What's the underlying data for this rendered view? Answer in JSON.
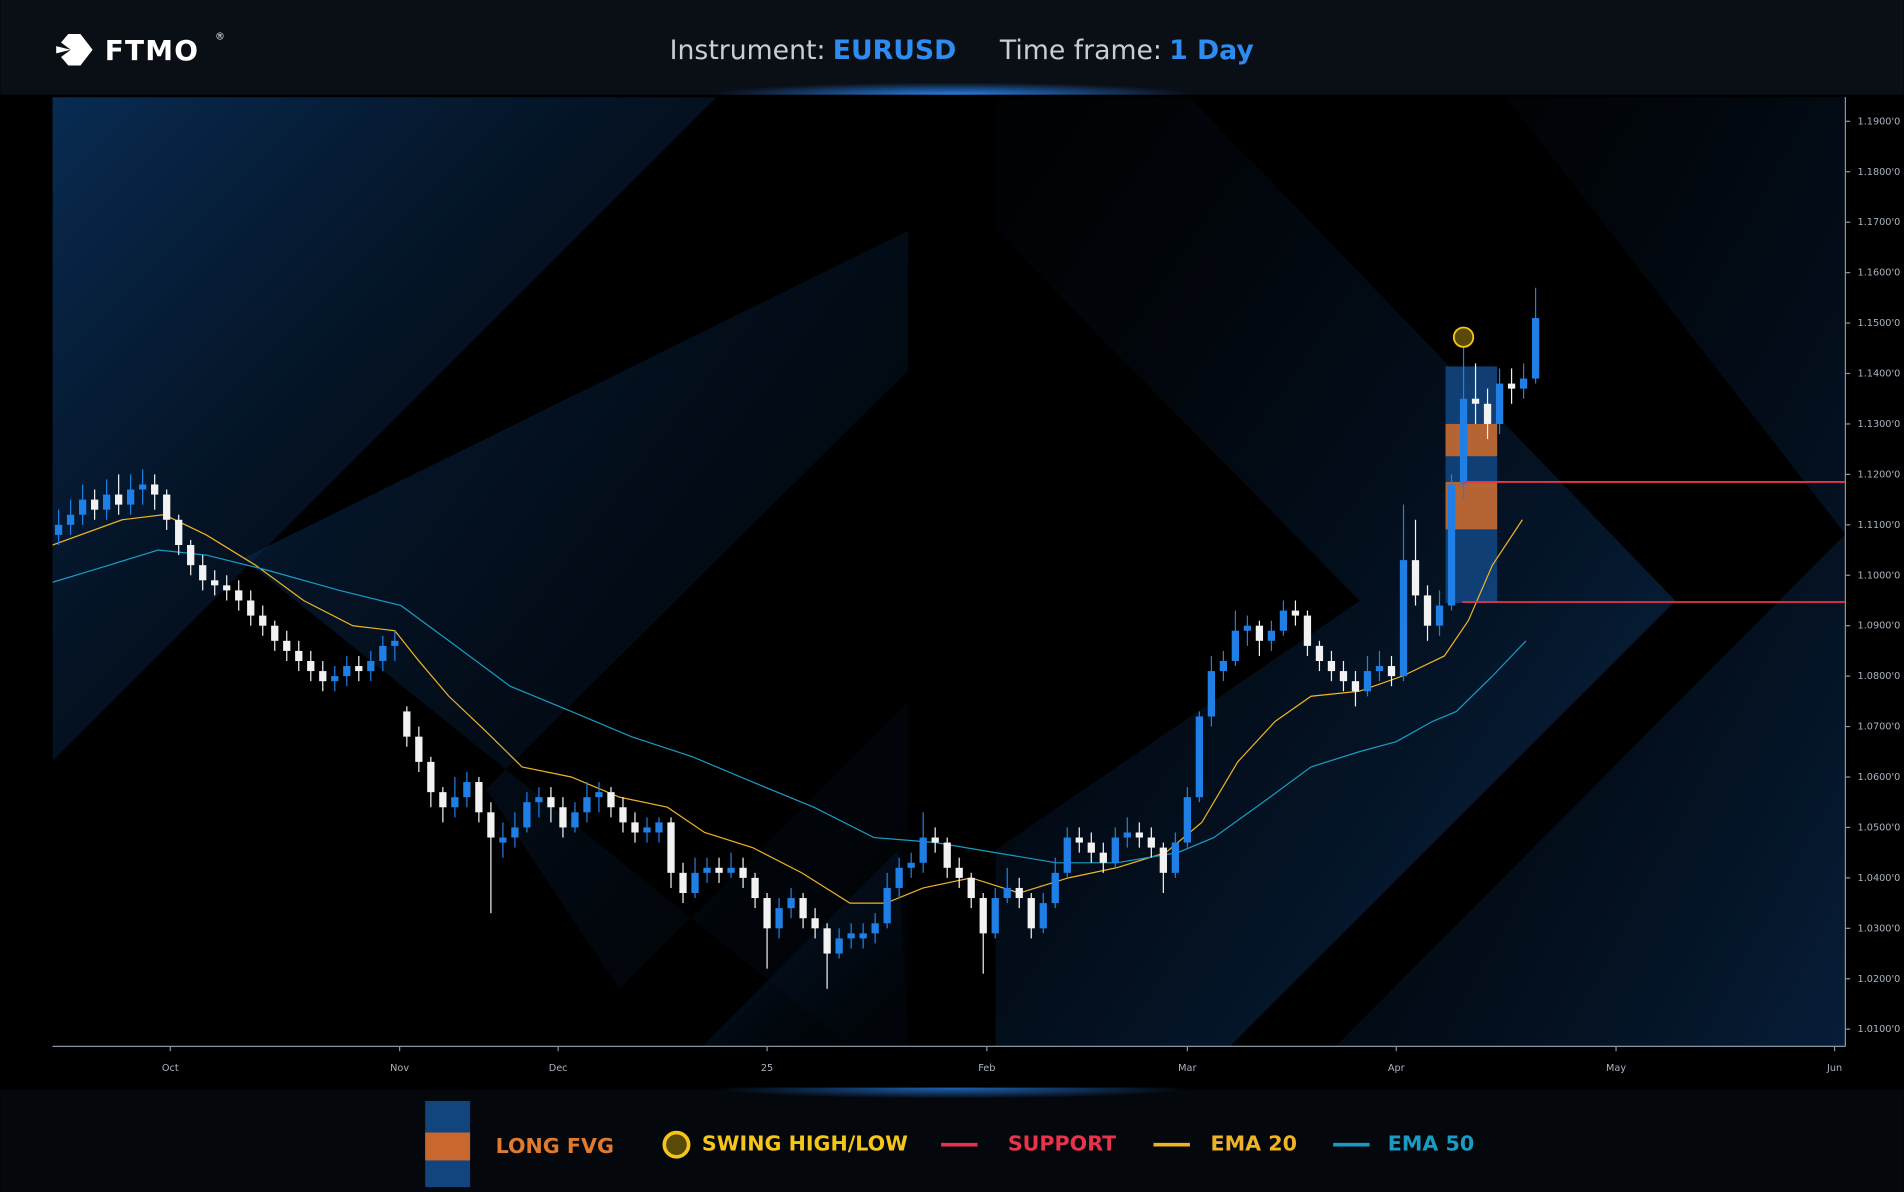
{
  "header": {
    "logo": "FTMO",
    "logo_mark": "®",
    "instrument_label": "Instrument:",
    "instrument": "EURUSD",
    "timeframe_label": "Time frame:",
    "timeframe": "1 Day"
  },
  "chart_data": {
    "type": "candlestick",
    "candles": {
      "open": [
        1.108,
        1.11,
        1.112,
        1.115,
        1.113,
        1.116,
        1.114,
        1.117,
        1.118,
        1.116,
        1.111,
        1.106,
        1.102,
        1.099,
        1.098,
        1.097,
        1.095,
        1.092,
        1.09,
        1.087,
        1.085,
        1.083,
        1.081,
        1.079,
        1.08,
        1.082,
        1.081,
        1.083,
        1.086,
        1.073,
        1.068,
        1.063,
        1.057,
        1.054,
        1.056,
        1.059,
        1.053,
        1.047,
        1.048,
        1.05,
        1.055,
        1.056,
        1.054,
        1.05,
        1.053,
        1.056,
        1.057,
        1.054,
        1.051,
        1.049,
        1.049,
        1.051,
        1.041,
        1.037,
        1.041,
        1.042,
        1.041,
        1.042,
        1.04,
        1.036,
        1.03,
        1.034,
        1.036,
        1.032,
        1.03,
        1.025,
        1.028,
        1.028,
        1.029,
        1.031,
        1.038,
        1.042,
        1.043,
        1.048,
        1.047,
        1.042,
        1.04,
        1.036,
        1.029,
        1.036,
        1.038,
        1.036,
        1.03,
        1.035,
        1.041,
        1.048,
        1.047,
        1.045,
        1.043,
        1.048,
        1.049,
        1.048,
        1.046,
        1.041,
        1.047,
        1.056,
        1.072,
        1.081,
        1.083,
        1.089,
        1.09,
        1.087,
        1.089,
        1.093,
        1.092,
        1.086,
        1.083,
        1.081,
        1.079,
        1.077,
        1.081,
        1.082,
        1.08,
        1.103,
        1.096,
        1.09,
        1.094,
        1.118,
        1.135,
        1.134,
        1.13,
        1.138,
        1.137,
        1.139
      ],
      "high": [
        1.113,
        1.115,
        1.118,
        1.117,
        1.119,
        1.12,
        1.12,
        1.121,
        1.12,
        1.117,
        1.112,
        1.107,
        1.104,
        1.101,
        1.1,
        1.099,
        1.097,
        1.094,
        1.091,
        1.089,
        1.087,
        1.085,
        1.083,
        1.082,
        1.084,
        1.084,
        1.085,
        1.088,
        1.089,
        1.074,
        1.07,
        1.064,
        1.058,
        1.06,
        1.061,
        1.06,
        1.055,
        1.051,
        1.053,
        1.057,
        1.058,
        1.058,
        1.056,
        1.055,
        1.059,
        1.059,
        1.058,
        1.056,
        1.053,
        1.052,
        1.052,
        1.052,
        1.043,
        1.044,
        1.044,
        1.044,
        1.045,
        1.044,
        1.041,
        1.037,
        1.036,
        1.038,
        1.037,
        1.034,
        1.031,
        1.03,
        1.031,
        1.031,
        1.033,
        1.041,
        1.044,
        1.045,
        1.053,
        1.05,
        1.048,
        1.044,
        1.041,
        1.037,
        1.038,
        1.042,
        1.04,
        1.037,
        1.037,
        1.044,
        1.05,
        1.05,
        1.049,
        1.047,
        1.05,
        1.052,
        1.051,
        1.05,
        1.047,
        1.049,
        1.058,
        1.073,
        1.084,
        1.085,
        1.093,
        1.092,
        1.091,
        1.091,
        1.095,
        1.095,
        1.093,
        1.087,
        1.085,
        1.083,
        1.081,
        1.084,
        1.085,
        1.084,
        1.114,
        1.111,
        1.098,
        1.097,
        1.12,
        1.147,
        1.142,
        1.137,
        1.141,
        1.141,
        1.142,
        1.157
      ],
      "low": [
        1.106,
        1.108,
        1.11,
        1.111,
        1.111,
        1.112,
        1.112,
        1.114,
        1.113,
        1.109,
        1.104,
        1.1,
        1.097,
        1.096,
        1.095,
        1.093,
        1.09,
        1.088,
        1.085,
        1.083,
        1.081,
        1.079,
        1.077,
        1.077,
        1.078,
        1.079,
        1.079,
        1.081,
        1.083,
        1.066,
        1.061,
        1.054,
        1.051,
        1.052,
        1.054,
        1.051,
        1.033,
        1.044,
        1.046,
        1.049,
        1.052,
        1.051,
        1.048,
        1.049,
        1.051,
        1.053,
        1.052,
        1.049,
        1.047,
        1.047,
        1.047,
        1.038,
        1.035,
        1.036,
        1.039,
        1.039,
        1.04,
        1.038,
        1.034,
        1.022,
        1.028,
        1.032,
        1.03,
        1.028,
        1.018,
        1.024,
        1.026,
        1.026,
        1.027,
        1.03,
        1.036,
        1.04,
        1.041,
        1.045,
        1.04,
        1.038,
        1.034,
        1.021,
        1.028,
        1.035,
        1.034,
        1.028,
        1.029,
        1.034,
        1.04,
        1.045,
        1.043,
        1.041,
        1.042,
        1.046,
        1.046,
        1.044,
        1.037,
        1.04,
        1.046,
        1.055,
        1.07,
        1.079,
        1.082,
        1.086,
        1.084,
        1.085,
        1.088,
        1.09,
        1.084,
        1.081,
        1.079,
        1.077,
        1.074,
        1.076,
        1.079,
        1.078,
        1.079,
        1.094,
        1.087,
        1.088,
        1.093,
        1.115,
        1.13,
        1.127,
        1.128,
        1.134,
        1.135,
        1.138
      ],
      "close": [
        1.11,
        1.112,
        1.115,
        1.113,
        1.116,
        1.114,
        1.117,
        1.118,
        1.116,
        1.111,
        1.106,
        1.102,
        1.099,
        1.098,
        1.097,
        1.095,
        1.092,
        1.09,
        1.087,
        1.085,
        1.083,
        1.081,
        1.079,
        1.08,
        1.082,
        1.081,
        1.083,
        1.086,
        1.087,
        1.068,
        1.063,
        1.057,
        1.054,
        1.056,
        1.059,
        1.053,
        1.048,
        1.048,
        1.05,
        1.055,
        1.056,
        1.054,
        1.05,
        1.053,
        1.056,
        1.057,
        1.054,
        1.051,
        1.049,
        1.05,
        1.051,
        1.041,
        1.037,
        1.041,
        1.042,
        1.041,
        1.042,
        1.04,
        1.036,
        1.03,
        1.034,
        1.036,
        1.032,
        1.03,
        1.025,
        1.028,
        1.029,
        1.029,
        1.031,
        1.038,
        1.042,
        1.043,
        1.048,
        1.047,
        1.042,
        1.04,
        1.036,
        1.029,
        1.036,
        1.038,
        1.036,
        1.03,
        1.035,
        1.041,
        1.048,
        1.047,
        1.045,
        1.043,
        1.048,
        1.049,
        1.048,
        1.046,
        1.041,
        1.047,
        1.056,
        1.072,
        1.081,
        1.083,
        1.089,
        1.09,
        1.087,
        1.089,
        1.093,
        1.092,
        1.086,
        1.083,
        1.081,
        1.079,
        1.077,
        1.081,
        1.082,
        1.08,
        1.103,
        1.096,
        1.09,
        1.094,
        1.118,
        1.135,
        1.134,
        1.13,
        1.138,
        1.137,
        1.139,
        1.151
      ],
      "up_color": "#1f7fe5",
      "down_color": "#f2f2f2"
    },
    "series": [
      {
        "name": "EMA 20",
        "color": "#f0b323",
        "x": [
          -0.5,
          5.3,
          8.8,
          12.3,
          16.4,
          20.4,
          24.5,
          28.0,
          30.0,
          32.5,
          35.6,
          38.6,
          42.7,
          46.7,
          50.7,
          53.8,
          57.8,
          61.9,
          65.9,
          68.9,
          72.0,
          76.0,
          80.0,
          84.1,
          88.1,
          92.2,
          95.2,
          98.2,
          101.3,
          104.3,
          108.3,
          111.9,
          115.4,
          117.4,
          119.4,
          121.9
        ],
        "values": [
          1.106,
          1.111,
          1.112,
          1.108,
          1.102,
          1.095,
          1.09,
          1.089,
          1.083,
          1.076,
          1.069,
          1.062,
          1.06,
          1.056,
          1.054,
          1.049,
          1.046,
          1.041,
          1.035,
          1.035,
          1.038,
          1.04,
          1.037,
          1.04,
          1.042,
          1.045,
          1.051,
          1.063,
          1.071,
          1.076,
          1.077,
          1.08,
          1.084,
          1.091,
          1.102,
          1.111
        ]
      },
      {
        "name": "EMA 50",
        "color": "#1a9bc4",
        "x": [
          -0.5,
          4.2,
          8.3,
          12.3,
          17.4,
          23.4,
          28.5,
          32.5,
          37.6,
          42.7,
          47.7,
          52.8,
          57.8,
          62.9,
          67.9,
          73.0,
          78.0,
          83.1,
          88.1,
          93.2,
          96.2,
          100.3,
          104.3,
          108.3,
          111.4,
          114.4,
          116.4,
          119.4,
          122.2
        ],
        "values": [
          1.0986,
          1.102,
          1.105,
          1.104,
          1.101,
          1.097,
          1.094,
          1.087,
          1.078,
          1.073,
          1.068,
          1.064,
          1.059,
          1.054,
          1.048,
          1.047,
          1.045,
          1.043,
          1.043,
          1.045,
          1.048,
          1.055,
          1.062,
          1.065,
          1.067,
          1.071,
          1.073,
          1.08,
          1.087
        ]
      }
    ],
    "support": {
      "name": "SUPPORT",
      "color": "#e8334a",
      "levels": [
        1.1185,
        1.0947
      ],
      "start": 116.9
    },
    "fvg": {
      "name": "LONG FVG",
      "color": "#12457e",
      "gap_color": "#c8682e",
      "x": [
        115.5,
        119.8
      ],
      "range": [
        1.0945,
        1.1414
      ],
      "gaps": [
        [
          1.1236,
          1.13
        ],
        [
          1.1091,
          1.1185
        ]
      ]
    },
    "swing": {
      "name": "SWING HIGH/LOW",
      "color": "#f5c518",
      "x": 117,
      "value": 1.1472
    },
    "xlim": [
      -0.505,
      148.8
    ],
    "xticks": [
      {
        "value": 9.3,
        "label": "Oct"
      },
      {
        "value": 28.4,
        "label": "Nov"
      },
      {
        "value": 41.6,
        "label": "Dec"
      },
      {
        "value": 59.0,
        "label": "25"
      },
      {
        "value": 77.3,
        "label": "Feb"
      },
      {
        "value": 94.0,
        "label": "Mar"
      },
      {
        "value": 111.4,
        "label": "Apr"
      },
      {
        "value": 129.7,
        "label": "May"
      },
      {
        "value": 147.9,
        "label": "Jun"
      }
    ],
    "ylim": [
      1.0066,
      1.1948
    ],
    "yticks": [
      {
        "value": 1.01,
        "label": "1.0100'0"
      },
      {
        "value": 1.02,
        "label": "1.0200'0"
      },
      {
        "value": 1.03,
        "label": "1.0300'0"
      },
      {
        "value": 1.04,
        "label": "1.0400'0"
      },
      {
        "value": 1.05,
        "label": "1.0500'0"
      },
      {
        "value": 1.06,
        "label": "1.0600'0"
      },
      {
        "value": 1.07,
        "label": "1.0700'0"
      },
      {
        "value": 1.08,
        "label": "1.0800'0"
      },
      {
        "value": 1.09,
        "label": "1.0900'0"
      },
      {
        "value": 1.1,
        "label": "1.1000'0"
      },
      {
        "value": 1.11,
        "label": "1.1100'0"
      },
      {
        "value": 1.12,
        "label": "1.1200'0"
      },
      {
        "value": 1.13,
        "label": "1.1300'0"
      },
      {
        "value": 1.14,
        "label": "1.1400'0"
      },
      {
        "value": 1.15,
        "label": "1.1500'0"
      },
      {
        "value": 1.16,
        "label": "1.1600'0"
      },
      {
        "value": 1.17,
        "label": "1.1700'0"
      },
      {
        "value": 1.18,
        "label": "1.1800'0"
      },
      {
        "value": 1.19,
        "label": "1.1900'0"
      }
    ]
  }
}
